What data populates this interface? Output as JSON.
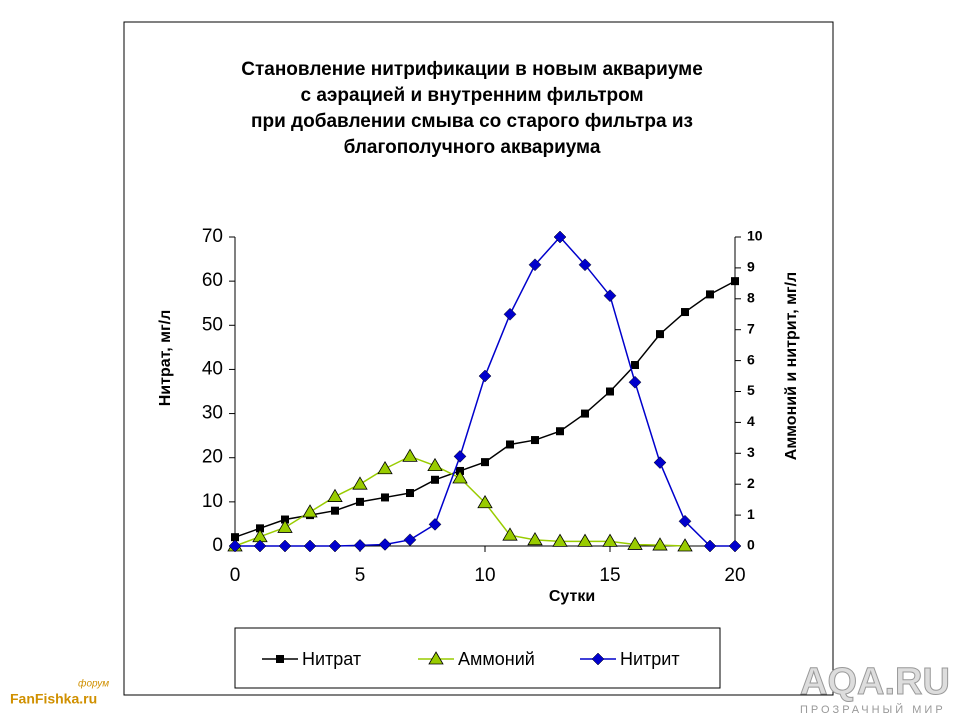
{
  "chart_data": {
    "type": "line",
    "title": [
      "Становление нитрификации в новым аквариуме",
      "с аэрацией и внутренним фильтром",
      "при добавлении смыва со старого фильтра из",
      "благополучного аквариума"
    ],
    "x_label": "Сутки",
    "y_label": "Нитрат, мг/л",
    "y2_label": "Аммоний и нитрит, мг/л",
    "x": [
      0,
      1,
      2,
      3,
      4,
      5,
      6,
      7,
      8,
      9,
      10,
      11,
      12,
      13,
      14,
      15,
      16,
      17,
      18,
      19,
      20
    ],
    "xlim": [
      0,
      20
    ],
    "xticks": [
      0,
      5,
      10,
      15,
      20
    ],
    "ylim": [
      0,
      70
    ],
    "yticks": [
      0,
      10,
      20,
      30,
      40,
      50,
      60,
      70
    ],
    "y2lim": [
      0,
      10
    ],
    "y2ticks": [
      0,
      1,
      2,
      3,
      4,
      5,
      6,
      7,
      8,
      9,
      10
    ],
    "grid": false,
    "series": [
      {
        "name": "Нитрат",
        "color": "#000000",
        "marker": "square",
        "values": [
          2,
          4,
          6,
          7,
          8,
          10,
          11,
          12,
          15,
          17,
          19,
          23,
          24,
          26,
          30,
          35,
          41,
          48,
          53,
          57,
          60
        ]
      },
      {
        "name": "Аммоний",
        "color": "#99cc00",
        "marker": "triangle",
        "axis": "y2",
        "values": [
          0,
          0.3,
          0.6,
          1.1,
          1.6,
          2.0,
          2.5,
          2.9,
          2.6,
          2.2,
          1.4,
          0.35,
          0.2,
          0.15,
          0.15,
          0.15,
          0.05,
          0.03,
          0,
          null,
          null
        ]
      },
      {
        "name": "Нитрит",
        "color": "#0000cc",
        "marker": "diamond",
        "axis": "y2",
        "values": [
          0,
          0,
          0,
          0,
          0,
          0.02,
          0.05,
          0.2,
          0.7,
          2.9,
          5.5,
          7.5,
          9.1,
          10,
          9.1,
          8.1,
          5.3,
          2.7,
          0.8,
          0,
          0
        ]
      }
    ]
  },
  "watermarks": {
    "left": "FanFishka.ru",
    "left_small": "форум",
    "right": "AQA.RU",
    "right_small": "ПРОЗРАЧНЫЙ МИР"
  }
}
